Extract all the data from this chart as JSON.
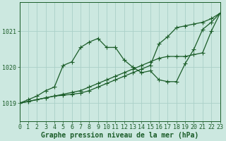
{
  "title": "Graphe pression niveau de la mer (hPa)",
  "bg_color": "#cce8e0",
  "grid_color": "#aad0c8",
  "line_color": "#1a5c28",
  "xlim": [
    0,
    23
  ],
  "ylim": [
    1018.5,
    1021.8
  ],
  "yticks": [
    1019,
    1020,
    1021
  ],
  "xticks": [
    0,
    1,
    2,
    3,
    4,
    5,
    6,
    7,
    8,
    9,
    10,
    11,
    12,
    13,
    14,
    15,
    16,
    17,
    18,
    19,
    20,
    21,
    22,
    23
  ],
  "series1_x": [
    0,
    1,
    2,
    3,
    4,
    5,
    6,
    7,
    8,
    9,
    10,
    11,
    12,
    13,
    14,
    15,
    16,
    17,
    18,
    19,
    20,
    21,
    22,
    23
  ],
  "series1_y": [
    1019.0,
    1019.1,
    1019.2,
    1019.35,
    1019.45,
    1020.05,
    1020.15,
    1020.55,
    1020.7,
    1020.8,
    1020.55,
    1020.55,
    1020.2,
    1020.0,
    1019.85,
    1019.9,
    1019.65,
    1019.6,
    1019.6,
    1020.1,
    1020.5,
    1021.05,
    1021.25,
    1021.5
  ],
  "series2_x": [
    0,
    1,
    2,
    3,
    4,
    5,
    6,
    7,
    8,
    9,
    10,
    11,
    12,
    13,
    14,
    15,
    16,
    17,
    18,
    19,
    20,
    21,
    22,
    23
  ],
  "series2_y": [
    1019.0,
    1019.05,
    1019.1,
    1019.15,
    1019.2,
    1019.25,
    1019.3,
    1019.35,
    1019.45,
    1019.55,
    1019.65,
    1019.75,
    1019.85,
    1019.95,
    1020.05,
    1020.15,
    1020.25,
    1020.3,
    1020.3,
    1020.3,
    1020.35,
    1020.4,
    1021.0,
    1021.5
  ],
  "series3_x": [
    0,
    1,
    2,
    3,
    4,
    5,
    6,
    7,
    8,
    9,
    10,
    11,
    12,
    13,
    14,
    15,
    16,
    17,
    18,
    19,
    20,
    21,
    22,
    23
  ],
  "series3_y": [
    1019.0,
    1019.05,
    1019.1,
    1019.15,
    1019.2,
    1019.22,
    1019.25,
    1019.28,
    1019.35,
    1019.45,
    1019.55,
    1019.65,
    1019.75,
    1019.85,
    1019.95,
    1020.05,
    1020.65,
    1020.85,
    1021.1,
    1021.15,
    1021.2,
    1021.25,
    1021.35,
    1021.5
  ],
  "marker": "+",
  "marker_size": 4,
  "line_width": 0.9,
  "xlabel_fontsize": 7,
  "tick_fontsize": 6
}
